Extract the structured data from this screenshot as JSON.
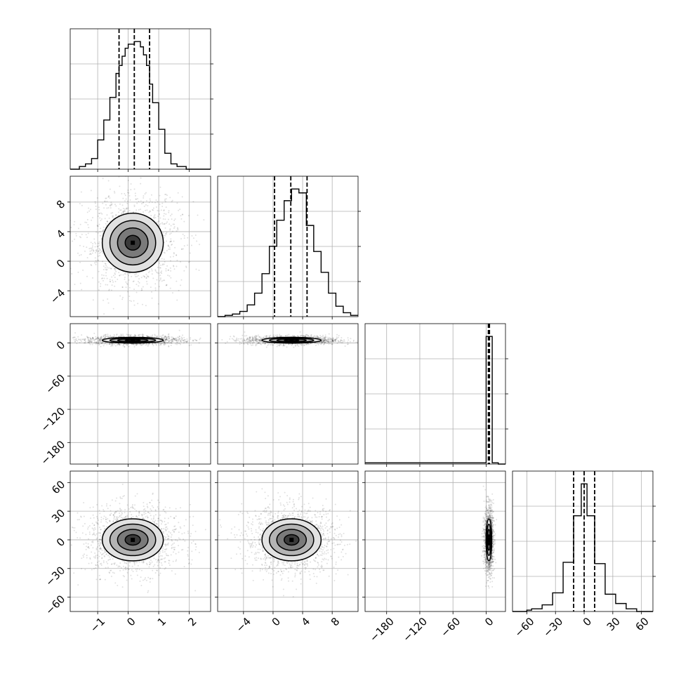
{
  "chart_data": {
    "type": "corner",
    "title": "",
    "parameter_labels": [
      "",
      "",
      "",
      ""
    ],
    "grid": true,
    "colors": {
      "line": "#000000",
      "points": "#000000",
      "grid": "#b0b0b0",
      "background": "#ffffff"
    },
    "quantile_lines_style": "dashed",
    "parameters": [
      {
        "range": [
          -1.9,
          2.7
        ],
        "ticks": [
          -1,
          0,
          1,
          2
        ],
        "tick_labels": [
          "−1",
          "0",
          "1",
          "2"
        ],
        "quantiles": [
          -0.3,
          0.2,
          0.7
        ],
        "histogram": {
          "bin_edges": [
            -1.9,
            -1.6,
            -1.4,
            -1.2,
            -1.0,
            -0.8,
            -0.6,
            -0.4,
            -0.3,
            -0.2,
            -0.1,
            0.0,
            0.1,
            0.2,
            0.3,
            0.4,
            0.5,
            0.6,
            0.7,
            0.8,
            1.0,
            1.2,
            1.4,
            1.6,
            1.9,
            2.7
          ],
          "counts": [
            0,
            2,
            4,
            8,
            22,
            37,
            54,
            72,
            78,
            85,
            91,
            94,
            94,
            96,
            96,
            92,
            86,
            78,
            64,
            50,
            30,
            12,
            4,
            2,
            0
          ]
        }
      },
      {
        "range": [
          -7.5,
          11.5
        ],
        "ticks": [
          -4,
          0,
          4,
          8
        ],
        "tick_labels": [
          "−4",
          "0",
          "4",
          "8"
        ],
        "quantiles": [
          0.2,
          2.4,
          4.6
        ],
        "histogram": {
          "bin_edges": [
            -7.5,
            -6.5,
            -5.5,
            -4.5,
            -3.5,
            -2.5,
            -1.5,
            -0.5,
            0.5,
            1.5,
            2.5,
            3.5,
            4.5,
            5.5,
            6.5,
            7.5,
            8.5,
            9.5,
            10.5,
            11.5
          ],
          "counts": [
            0,
            1,
            2,
            4,
            9,
            18,
            33,
            54,
            74,
            89,
            98,
            95,
            70,
            50,
            34,
            18,
            8,
            3,
            1
          ]
        }
      },
      {
        "range": [
          -219,
          35
        ],
        "ticks": [
          -180,
          -120,
          -60,
          0
        ],
        "tick_labels": [
          "−180",
          "−120",
          "−60",
          "0"
        ],
        "quantiles": [
          4.0,
          5.0,
          6.0
        ],
        "histogram": {
          "bin_edges": [
            -219,
            0,
            11,
            22,
            35
          ],
          "counts": [
            1,
            99,
            1,
            0
          ]
        }
      },
      {
        "range": [
          -75,
          72
        ],
        "ticks": [
          -60,
          -30,
          0,
          30,
          60
        ],
        "tick_labels": [
          "−60",
          "−30",
          "0",
          "30",
          "60"
        ],
        "quantiles": [
          -11,
          0,
          11
        ],
        "histogram": {
          "bin_edges": [
            -75,
            -60,
            -55,
            -44,
            -33,
            -22,
            -11,
            -3,
            3,
            11,
            22,
            33,
            44,
            55,
            72
          ],
          "counts": [
            0,
            1,
            2,
            5,
            14,
            37,
            72,
            96,
            72,
            36,
            13,
            6,
            2,
            0
          ]
        }
      }
    ],
    "pairs": [
      {
        "row": 1,
        "col": 0,
        "center": [
          0.15,
          2.5
        ],
        "spread": [
          0.5,
          2.0
        ],
        "correlation": 0.0
      },
      {
        "row": 2,
        "col": 0,
        "center": [
          0.15,
          5.0
        ],
        "spread": [
          0.5,
          2.6
        ],
        "correlation": 0.0
      },
      {
        "row": 2,
        "col": 1,
        "center": [
          2.5,
          5.0
        ],
        "spread": [
          2.0,
          2.6
        ],
        "correlation": 0.0
      },
      {
        "row": 3,
        "col": 0,
        "center": [
          0.15,
          0.0
        ],
        "spread": [
          0.5,
          11.0
        ],
        "correlation": 0.0
      },
      {
        "row": 3,
        "col": 1,
        "center": [
          2.5,
          0.0
        ],
        "spread": [
          2.0,
          11.0
        ],
        "correlation": 0.0
      },
      {
        "row": 3,
        "col": 2,
        "center": [
          5.0,
          0.0
        ],
        "spread": [
          2.6,
          11.0
        ],
        "correlation": 0.0
      }
    ],
    "contour_levels_sigma": [
      0.5,
      1.0,
      1.5,
      2.0
    ]
  }
}
